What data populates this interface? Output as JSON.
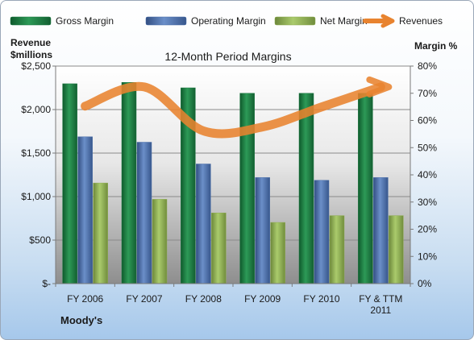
{
  "chart_data": {
    "type": "bar",
    "title": "12-Month Period Margins",
    "brand": "Moody's",
    "y_left_label_lines": [
      "Revenue",
      "$millions"
    ],
    "y_right_label": "Margin %",
    "categories": [
      [
        "FY 2006"
      ],
      [
        "FY 2007"
      ],
      [
        "FY 2008"
      ],
      [
        "FY 2009"
      ],
      [
        "FY 2010"
      ],
      [
        "FY & TTM",
        "2011"
      ]
    ],
    "y_left": {
      "min": 0,
      "max": 2500,
      "ticks": [
        0,
        500,
        1000,
        1500,
        2000,
        2500
      ],
      "tick_labels": [
        "$-",
        "$500",
        "$1,000",
        "$1,500",
        "$2,000",
        "$2,500"
      ]
    },
    "y_right": {
      "min": 0,
      "max": 80,
      "ticks": [
        0,
        10,
        20,
        30,
        40,
        50,
        60,
        70,
        80
      ],
      "tick_labels": [
        "0%",
        "10%",
        "20%",
        "30%",
        "40%",
        "50%",
        "60%",
        "70%",
        "80%"
      ]
    },
    "series": [
      {
        "name": "Gross Margin",
        "axis": "right",
        "kind": "bar",
        "color": "#1f7a44",
        "values": [
          73.5,
          74,
          72,
          70,
          70,
          70
        ]
      },
      {
        "name": "Operating Margin",
        "axis": "right",
        "kind": "bar",
        "color": "#4a6faa",
        "values": [
          54,
          52,
          44,
          39,
          38,
          39
        ]
      },
      {
        "name": "Net Margin",
        "axis": "right",
        "kind": "bar",
        "color": "#8fad52",
        "values": [
          37,
          31,
          26,
          22.5,
          25,
          25
        ]
      },
      {
        "name": "Revenues",
        "axis": "left",
        "kind": "line",
        "color": "#e8832f",
        "values": [
          2040,
          2260,
          1755,
          1800,
          2030,
          2260
        ]
      }
    ],
    "legend_position": "top",
    "grid": true
  }
}
